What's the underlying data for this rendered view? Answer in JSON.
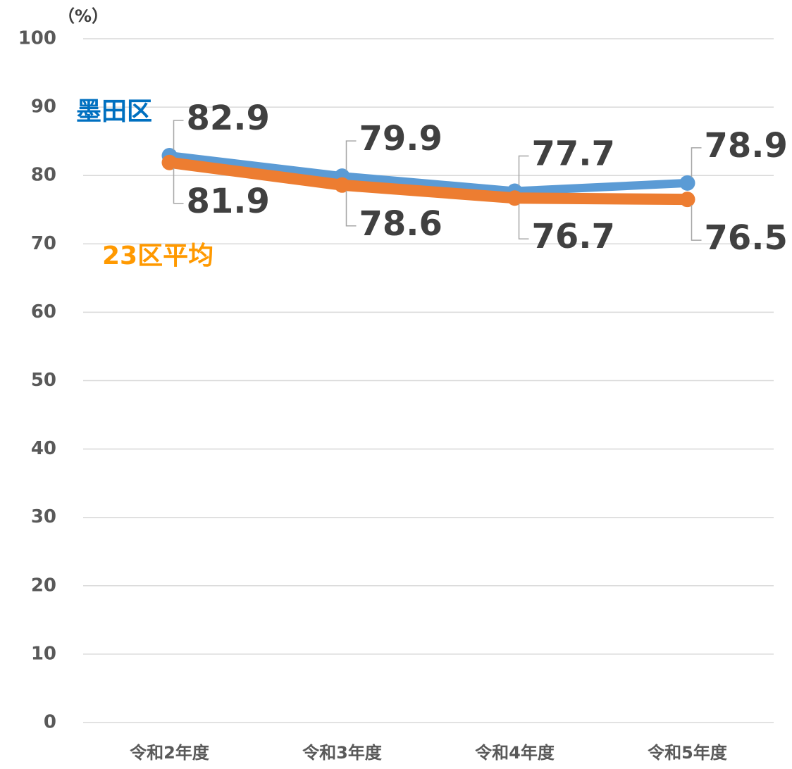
{
  "chart_data": {
    "type": "line",
    "ylabel": "（%）",
    "categories": [
      "令和2年度",
      "令和3年度",
      "令和4年度",
      "令和5年度"
    ],
    "series": [
      {
        "name": "墨田区",
        "color": "#5b9bd5",
        "label_color": "#0070c0",
        "values": [
          82.9,
          79.9,
          77.7,
          78.9
        ]
      },
      {
        "name": "23区平均",
        "color": "#ed7d31",
        "label_color": "#ff9900",
        "values": [
          81.9,
          78.6,
          76.7,
          76.5
        ]
      }
    ],
    "ylim": [
      0,
      100
    ],
    "yticks": [
      0,
      10,
      20,
      30,
      40,
      50,
      60,
      70,
      80,
      90,
      100
    ],
    "grid": true
  }
}
